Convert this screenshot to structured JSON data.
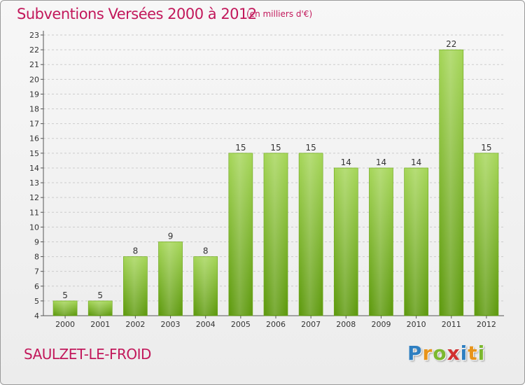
{
  "header": {
    "title": "Subventions Versées 2000 à 2012",
    "unit": "(en milliers d'€)"
  },
  "footer": {
    "commune": "SAULZET-LE-FROID",
    "logo_letters": [
      "P",
      "r",
      "o",
      "x",
      "i",
      "t",
      "i"
    ],
    "logo_colors": [
      "#2e7fc1",
      "#e8941a",
      "#7cb82f",
      "#d12f2f",
      "#2e7fc1",
      "#e8941a",
      "#7cb82f"
    ]
  },
  "colors": {
    "bar_light": "#a6d65a",
    "bar_dark": "#5f9a10",
    "title": "#c2185b",
    "grid": "#cccccc"
  },
  "chart_data": {
    "type": "bar",
    "title": "Subventions Versées 2000 à 2012",
    "subtitle": "(en milliers d'€)",
    "xlabel": "",
    "ylabel": "",
    "categories": [
      "2000",
      "2001",
      "2002",
      "2003",
      "2004",
      "2005",
      "2006",
      "2007",
      "2008",
      "2009",
      "2010",
      "2011",
      "2012"
    ],
    "values": [
      5,
      5,
      8,
      9,
      8,
      15,
      15,
      15,
      14,
      14,
      14,
      22,
      15
    ],
    "ylim": [
      4,
      23
    ],
    "yticks": [
      "4",
      "5",
      "6",
      "7",
      "8",
      "9",
      "10",
      "11",
      "12",
      "13",
      "14",
      "15",
      "16",
      "17",
      "18",
      "19",
      "20",
      "21",
      "22",
      "23"
    ],
    "grid": true,
    "legend": "none"
  }
}
